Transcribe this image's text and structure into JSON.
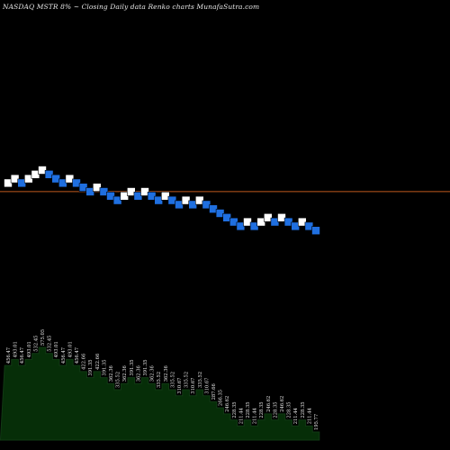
{
  "chart_data": {
    "type": "renko",
    "title": "NASDAQ MSTR 8% ~ Closing Daily data Renko charts MunafaSutra.com",
    "colors": {
      "background": "#000000",
      "up_brick": "#ffffff",
      "down_brick": "#1f6fe0",
      "reference_line": "#c05a1e",
      "area_fill": "#062e08",
      "area_border": "#113a14",
      "label_text": "#e6e6e6"
    },
    "ylim": [
      150,
      800
    ],
    "reference_line": 392,
    "bricks": [
      {
        "dir": "up",
        "value": 456.47
      },
      {
        "dir": "up",
        "value": 493.01
      },
      {
        "dir": "down",
        "value": 456.47
      },
      {
        "dir": "up",
        "value": 493.01
      },
      {
        "dir": "up",
        "value": 532.45
      },
      {
        "dir": "up",
        "value": 575.05
      },
      {
        "dir": "down",
        "value": 532.45
      },
      {
        "dir": "down",
        "value": 493.01
      },
      {
        "dir": "down",
        "value": 456.47
      },
      {
        "dir": "up",
        "value": 493.01
      },
      {
        "dir": "down",
        "value": 456.47
      },
      {
        "dir": "down",
        "value": 422.66
      },
      {
        "dir": "down",
        "value": 391.35
      },
      {
        "dir": "up",
        "value": 422.66
      },
      {
        "dir": "down",
        "value": 391.35
      },
      {
        "dir": "down",
        "value": 362.36
      },
      {
        "dir": "down",
        "value": 335.52
      },
      {
        "dir": "up",
        "value": 362.36
      },
      {
        "dir": "up",
        "value": 391.35
      },
      {
        "dir": "down",
        "value": 362.36
      },
      {
        "dir": "up",
        "value": 391.35
      },
      {
        "dir": "down",
        "value": 362.36
      },
      {
        "dir": "down",
        "value": 335.52
      },
      {
        "dir": "up",
        "value": 362.36
      },
      {
        "dir": "down",
        "value": 335.52
      },
      {
        "dir": "down",
        "value": 310.67
      },
      {
        "dir": "up",
        "value": 335.52
      },
      {
        "dir": "down",
        "value": 310.67
      },
      {
        "dir": "up",
        "value": 335.52
      },
      {
        "dir": "down",
        "value": 310.67
      },
      {
        "dir": "down",
        "value": 287.66
      },
      {
        "dir": "down",
        "value": 266.35
      },
      {
        "dir": "down",
        "value": 246.62
      },
      {
        "dir": "down",
        "value": 228.35
      },
      {
        "dir": "down",
        "value": 211.44
      },
      {
        "dir": "up",
        "value": 228.35
      },
      {
        "dir": "down",
        "value": 211.44
      },
      {
        "dir": "up",
        "value": 228.35
      },
      {
        "dir": "up",
        "value": 246.62
      },
      {
        "dir": "down",
        "value": 228.35
      },
      {
        "dir": "up",
        "value": 246.62
      },
      {
        "dir": "down",
        "value": 228.35
      },
      {
        "dir": "down",
        "value": 211.44
      },
      {
        "dir": "up",
        "value": 228.35
      },
      {
        "dir": "down",
        "value": 211.44
      },
      {
        "dir": "down",
        "value": 195.77
      }
    ]
  }
}
